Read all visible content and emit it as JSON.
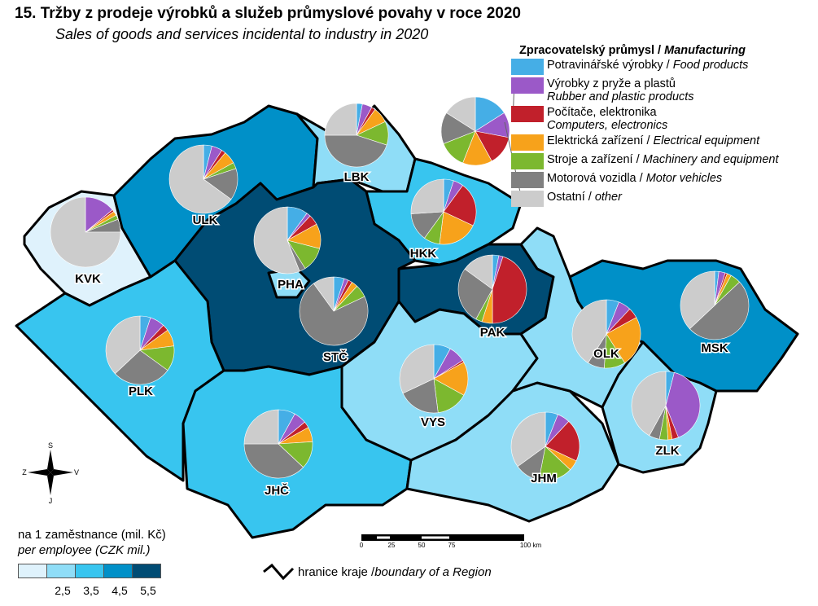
{
  "title": "15. Tržby z prodeje výrobků a služeb průmyslové povahy v roce 2020",
  "subtitle": "Sales of goods and services incidental to industry in 2020",
  "legend": {
    "heading_cz": "Zpracovatelský průmysl / ",
    "heading_en": "Manufacturing",
    "items": [
      {
        "cz": "Potravinářské výrobky / ",
        "en": "Food products",
        "color": "#45aee6"
      },
      {
        "cz": "Výrobky z pryže a plastů",
        "en": "Rubber and plastic products",
        "color": "#9b59c8"
      },
      {
        "cz": "Počítače, elektronika",
        "en": "Computers, electronics",
        "color": "#c1202b"
      },
      {
        "cz": "Elektrická zařízení / ",
        "en": "Electrical equipment",
        "color": "#f7a21b"
      },
      {
        "cz": "Stroje a zařízení / ",
        "en": "Machinery and equipment",
        "color": "#7cb82f"
      },
      {
        "cz": "Motorová vozidla / ",
        "en": "Motor vehicles",
        "color": "#808080"
      },
      {
        "cz": "Ostatní / ",
        "en": "other",
        "color": "#cccccc"
      }
    ],
    "sample_shares": [
      16,
      12,
      14,
      14,
      13,
      15,
      16
    ]
  },
  "choropleth": {
    "title_cz": "na 1 zaměstnance (mil. Kč)",
    "title_en": "per employee (CZK mil.)",
    "class_colors": [
      "#dff2fc",
      "#8fddf7",
      "#38c5ef",
      "#0090c8",
      "#004c74"
    ],
    "breaks": [
      "2,5",
      "3,5",
      "4,5",
      "5,5"
    ]
  },
  "boundary_legend": {
    "cz": "hranice kraje / ",
    "en": "boundary of a Region"
  },
  "scalebar": {
    "ticks": [
      "0",
      "25",
      "50",
      "75",
      "100 km"
    ]
  },
  "compass": {
    "n": "S",
    "s": "J",
    "e": "V",
    "w": "Z"
  },
  "regions": [
    {
      "code": "KVK",
      "class": 0,
      "shares": [
        0,
        14,
        1,
        2,
        2,
        6,
        75
      ]
    },
    {
      "code": "ULK",
      "class": 3,
      "shares": [
        4,
        5,
        2,
        6,
        3,
        15,
        65
      ]
    },
    {
      "code": "LBK",
      "class": 1,
      "shares": [
        3,
        5,
        2,
        8,
        12,
        45,
        25
      ]
    },
    {
      "code": "HKK",
      "class": 2,
      "shares": [
        5,
        5,
        22,
        20,
        8,
        14,
        26
      ]
    },
    {
      "code": "PAK",
      "class": 4,
      "shares": [
        3,
        2,
        45,
        5,
        3,
        27,
        15
      ]
    },
    {
      "code": "STČ",
      "class": 4,
      "shares": [
        5,
        2,
        2,
        3,
        6,
        72,
        10
      ]
    },
    {
      "code": "PHA",
      "class": 1,
      "shares": [
        10,
        2,
        5,
        12,
        12,
        3,
        56
      ]
    },
    {
      "code": "PLK",
      "class": 2,
      "shares": [
        5,
        7,
        3,
        8,
        12,
        28,
        37
      ]
    },
    {
      "code": "JHČ",
      "class": 2,
      "shares": [
        8,
        6,
        3,
        7,
        13,
        38,
        25
      ]
    },
    {
      "code": "VYS",
      "class": 1,
      "shares": [
        8,
        8,
        1,
        16,
        15,
        20,
        32
      ]
    },
    {
      "code": "JHM",
      "class": 1,
      "shares": [
        6,
        6,
        20,
        5,
        16,
        12,
        35
      ]
    },
    {
      "code": "OLK",
      "class": 1,
      "shares": [
        6,
        6,
        5,
        24,
        10,
        8,
        41
      ]
    },
    {
      "code": "ZLK",
      "class": 1,
      "shares": [
        4,
        40,
        3,
        2,
        4,
        5,
        42
      ]
    },
    {
      "code": "MSK",
      "class": 3,
      "shares": [
        2,
        3,
        1,
        2,
        5,
        50,
        37
      ]
    }
  ]
}
